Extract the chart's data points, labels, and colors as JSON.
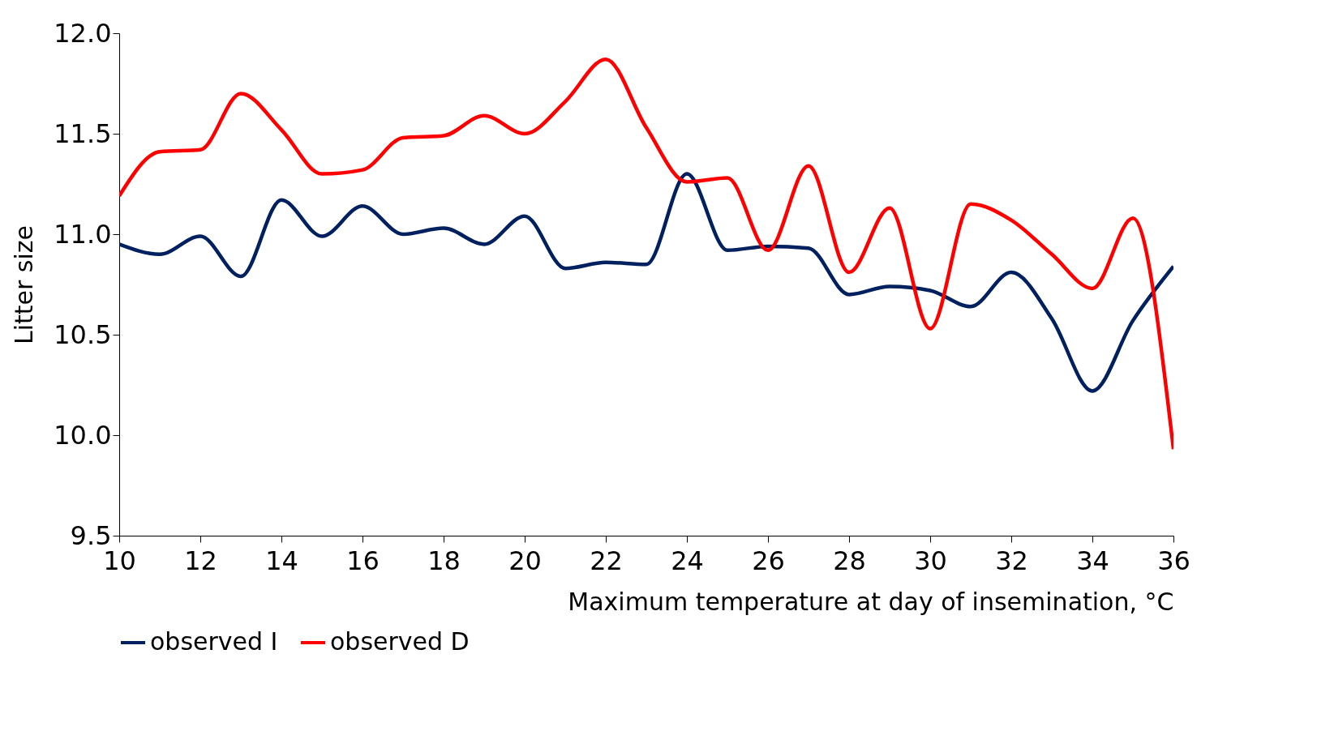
{
  "chart_data": {
    "type": "line",
    "xlabel": "Maximum temperature at day of insemination, °C",
    "ylabel": "Litter size",
    "x": [
      10,
      11,
      12,
      13,
      14,
      15,
      16,
      17,
      18,
      19,
      20,
      21,
      22,
      23,
      24,
      25,
      26,
      27,
      28,
      29,
      30,
      31,
      32,
      33,
      34,
      35,
      36
    ],
    "series": [
      {
        "name": "observed I",
        "color": "#002060",
        "values": [
          10.95,
          10.9,
          10.99,
          10.79,
          11.17,
          10.99,
          11.14,
          11.0,
          11.03,
          10.95,
          11.09,
          10.83,
          10.86,
          10.85,
          11.3,
          10.92,
          10.94,
          10.93,
          10.7,
          10.74,
          10.72,
          10.64,
          10.81,
          10.58,
          10.22,
          10.57,
          10.84
        ]
      },
      {
        "name": "observed D",
        "color": "#ff0000",
        "values": [
          11.19,
          11.41,
          11.42,
          11.7,
          11.52,
          11.3,
          11.32,
          11.48,
          11.49,
          11.59,
          11.5,
          11.66,
          11.87,
          11.53,
          11.26,
          11.28,
          10.92,
          11.34,
          10.81,
          11.13,
          10.53,
          11.15,
          11.07,
          10.9,
          10.73,
          11.08,
          9.93
        ]
      }
    ],
    "xlim": [
      10,
      36
    ],
    "xticks": [
      10,
      12,
      14,
      16,
      18,
      20,
      22,
      24,
      26,
      28,
      30,
      32,
      34,
      36
    ],
    "ylim": [
      9.5,
      12.0
    ],
    "yticks": [
      {
        "value": 9.5,
        "label": "9.5"
      },
      {
        "value": 10,
        "label": "10.0"
      },
      {
        "value": 10.5,
        "label": "10.5"
      },
      {
        "value": 11,
        "label": "11.0"
      },
      {
        "value": 11.5,
        "label": "11.5"
      },
      {
        "value": 12,
        "label": "12.0"
      }
    ],
    "grid": false,
    "legend": "bottom",
    "marker": "none",
    "line_style": "solid"
  }
}
